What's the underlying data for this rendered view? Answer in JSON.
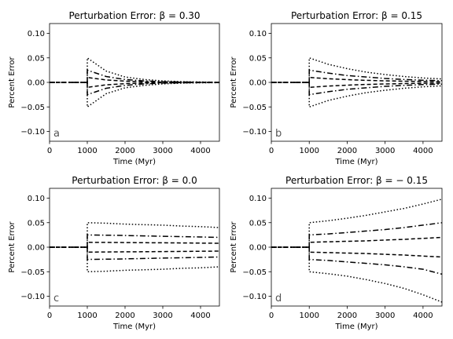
{
  "chart_data": [
    {
      "type": "line",
      "title": "Perturbation Error: β = 0.30",
      "xlabel": "Time (Myr)",
      "ylabel": "Percent Error",
      "panel_label": "a",
      "xlim": [
        0,
        4500
      ],
      "ylim": [
        -0.12,
        0.12
      ],
      "xticks": [
        "0",
        "1000",
        "2000",
        "3000",
        "4000"
      ],
      "yticks": [
        "-0.10",
        "-0.05",
        "0.00",
        "0.05",
        "0.10"
      ],
      "grid": false,
      "x": [
        1000,
        1500,
        2000,
        2500,
        3000,
        3500,
        4000,
        4500
      ],
      "series": [
        {
          "style": "dotted",
          "values": [
            0.05,
            0.023,
            0.011,
            0.006,
            0.003,
            0.0015,
            0.0008,
            0.0004
          ]
        },
        {
          "style": "dashdot",
          "values": [
            0.025,
            0.012,
            0.006,
            0.003,
            0.0015,
            0.0008,
            0.0004,
            0.0002
          ]
        },
        {
          "style": "dashed",
          "values": [
            0.01,
            0.005,
            0.0025,
            0.0012,
            0.0006,
            0.0003,
            0.0002,
            0.0001
          ]
        },
        {
          "style": "dashed",
          "values": [
            -0.01,
            -0.005,
            -0.0025,
            -0.0012,
            -0.0006,
            -0.0003,
            -0.0002,
            -0.0001
          ]
        },
        {
          "style": "dashdot",
          "values": [
            -0.025,
            -0.012,
            -0.006,
            -0.003,
            -0.0015,
            -0.0008,
            -0.0004,
            -0.0002
          ]
        },
        {
          "style": "dotted",
          "values": [
            -0.05,
            -0.023,
            -0.011,
            -0.006,
            -0.003,
            -0.0015,
            -0.0008,
            -0.0004
          ]
        }
      ]
    },
    {
      "type": "line",
      "title": "Perturbation Error: β = 0.15",
      "xlabel": "Time (Myr)",
      "ylabel": "Percent Error",
      "panel_label": "b",
      "xlim": [
        0,
        4500
      ],
      "ylim": [
        -0.12,
        0.12
      ],
      "xticks": [
        "0",
        "1000",
        "2000",
        "3000",
        "4000"
      ],
      "yticks": [
        "-0.10",
        "-0.05",
        "0.00",
        "0.05",
        "0.10"
      ],
      "grid": false,
      "x": [
        1000,
        1500,
        2000,
        2500,
        3000,
        3500,
        4000,
        4500
      ],
      "series": [
        {
          "style": "dotted",
          "values": [
            0.05,
            0.037,
            0.028,
            0.021,
            0.016,
            0.012,
            0.009,
            0.007
          ]
        },
        {
          "style": "dashdot",
          "values": [
            0.025,
            0.019,
            0.014,
            0.011,
            0.008,
            0.006,
            0.0045,
            0.0035
          ]
        },
        {
          "style": "dashed",
          "values": [
            0.01,
            0.0075,
            0.0056,
            0.0042,
            0.0032,
            0.0024,
            0.0018,
            0.0014
          ]
        },
        {
          "style": "dashed",
          "values": [
            -0.01,
            -0.0075,
            -0.0056,
            -0.0042,
            -0.0032,
            -0.0024,
            -0.0018,
            -0.0014
          ]
        },
        {
          "style": "dashdot",
          "values": [
            -0.025,
            -0.019,
            -0.014,
            -0.011,
            -0.008,
            -0.006,
            -0.0045,
            -0.0035
          ]
        },
        {
          "style": "dotted",
          "values": [
            -0.05,
            -0.037,
            -0.028,
            -0.021,
            -0.016,
            -0.012,
            -0.009,
            -0.007
          ]
        }
      ]
    },
    {
      "type": "line",
      "title": "Perturbation Error: β = 0.0",
      "xlabel": "Time (Myr)",
      "ylabel": "Percent Error",
      "panel_label": "c",
      "xlim": [
        0,
        4500
      ],
      "ylim": [
        -0.12,
        0.12
      ],
      "xticks": [
        "0",
        "1000",
        "2000",
        "3000",
        "4000"
      ],
      "yticks": [
        "-0.10",
        "-0.05",
        "0.00",
        "0.05",
        "0.10"
      ],
      "grid": false,
      "x": [
        1000,
        1500,
        2000,
        2500,
        3000,
        3500,
        4000,
        4500
      ],
      "series": [
        {
          "style": "dotted",
          "values": [
            0.05,
            0.049,
            0.047,
            0.046,
            0.045,
            0.043,
            0.042,
            0.04
          ]
        },
        {
          "style": "dashdot",
          "values": [
            0.025,
            0.0245,
            0.0238,
            0.023,
            0.0223,
            0.0215,
            0.0208,
            0.02
          ]
        },
        {
          "style": "dashed",
          "values": [
            0.01,
            0.0098,
            0.0095,
            0.0092,
            0.0089,
            0.0086,
            0.0083,
            0.008
          ]
        },
        {
          "style": "dashed",
          "values": [
            -0.01,
            -0.0098,
            -0.0095,
            -0.0092,
            -0.0089,
            -0.0086,
            -0.0083,
            -0.008
          ]
        },
        {
          "style": "dashdot",
          "values": [
            -0.025,
            -0.0245,
            -0.0238,
            -0.023,
            -0.0223,
            -0.0215,
            -0.0208,
            -0.02
          ]
        },
        {
          "style": "dotted",
          "values": [
            -0.05,
            -0.049,
            -0.047,
            -0.046,
            -0.045,
            -0.043,
            -0.042,
            -0.04
          ]
        }
      ]
    },
    {
      "type": "line",
      "title": "Perturbation Error: β = − 0.15",
      "xlabel": "Time (Myr)",
      "ylabel": "Percent Error",
      "panel_label": "d",
      "xlim": [
        0,
        4500
      ],
      "ylim": [
        -0.12,
        0.12
      ],
      "xticks": [
        "0",
        "1000",
        "2000",
        "3000",
        "4000"
      ],
      "yticks": [
        "-0.10",
        "-0.05",
        "0.00",
        "0.05",
        "0.10"
      ],
      "grid": false,
      "x": [
        1000,
        1500,
        2000,
        2500,
        3000,
        3500,
        4000,
        4500
      ],
      "series": [
        {
          "style": "dotted",
          "values": [
            0.05,
            0.054,
            0.059,
            0.065,
            0.072,
            0.079,
            0.088,
            0.098
          ]
        },
        {
          "style": "dashdot",
          "values": [
            0.025,
            0.027,
            0.03,
            0.033,
            0.036,
            0.04,
            0.045,
            0.05
          ]
        },
        {
          "style": "dashed",
          "values": [
            0.01,
            0.011,
            0.012,
            0.013,
            0.0145,
            0.016,
            0.018,
            0.02
          ]
        },
        {
          "style": "dashed",
          "values": [
            -0.01,
            -0.011,
            -0.012,
            -0.013,
            -0.0145,
            -0.016,
            -0.018,
            -0.02
          ]
        },
        {
          "style": "dashdot",
          "values": [
            -0.025,
            -0.027,
            -0.03,
            -0.033,
            -0.036,
            -0.04,
            -0.045,
            -0.055
          ]
        },
        {
          "style": "dotted",
          "values": [
            -0.05,
            -0.054,
            -0.059,
            -0.066,
            -0.074,
            -0.084,
            -0.097,
            -0.112
          ]
        }
      ]
    }
  ]
}
